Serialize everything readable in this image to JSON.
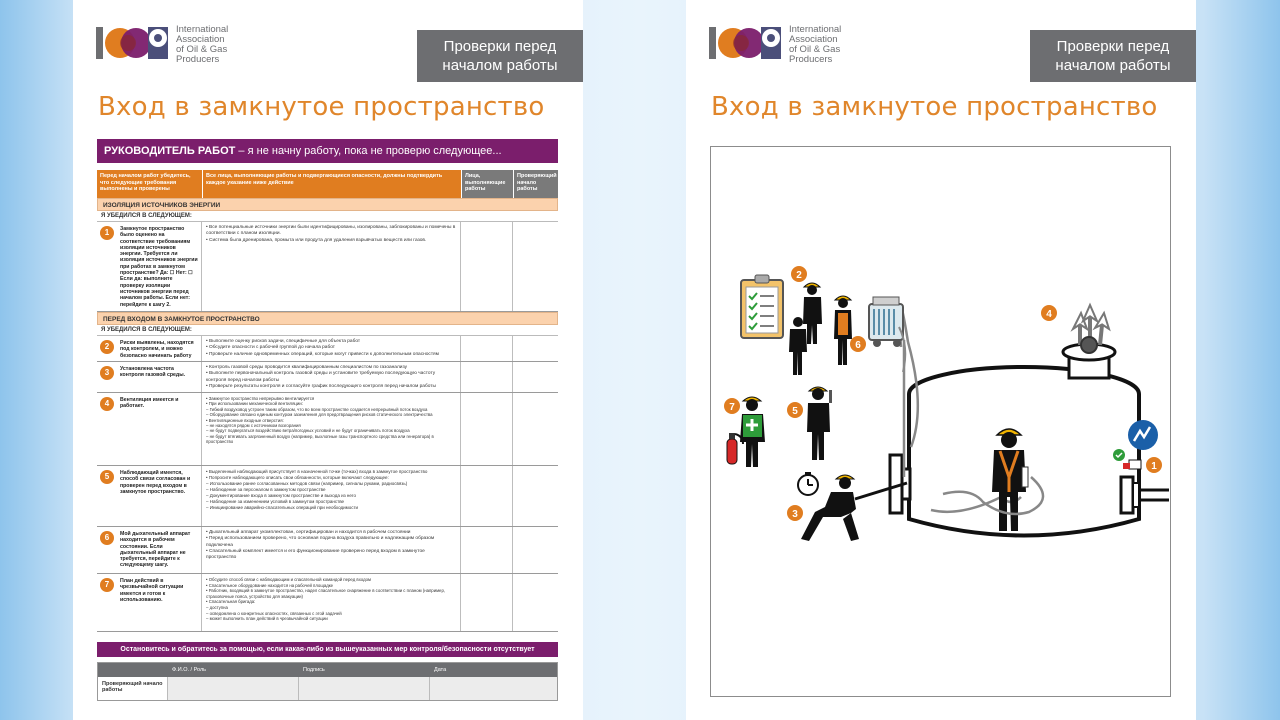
{
  "slide": {
    "background": "#c8e2f6",
    "accent_orange": "#e07d20",
    "accent_purple": "#7b1e6c",
    "badge_gray": "#6d6e71"
  },
  "logo": {
    "mark": "IOGP",
    "text_lines": [
      "International",
      "Association",
      "of Oil & Gas",
      "Producers"
    ]
  },
  "badge": {
    "line1": "Проверки перед",
    "line2": "началом работы"
  },
  "title": "Вход в замкнутое пространство",
  "supervisor": {
    "bold": "РУКОВОДИТЕЛЬ РАБОТ",
    "rest": " – я не начну работу, пока не проверю следующее..."
  },
  "table": {
    "headers": [
      "Перед началом работ убедитесь, что следующие требования выполнены и проверены",
      "Все лица, выполняющие работы и подвергающиеся опасности, должны подтвердить каждое указание ниже действие",
      "Лица, выполняющие работы",
      "Проверяющий начало работы"
    ],
    "section1": "ИЗОЛЯЦИЯ ИСТОЧНИКОВ ЭНЕРГИИ",
    "section2": "ПЕРЕД ВХОДОМ В ЗАМКНУТОЕ ПРОСТРАНСТВО",
    "confirm": "Я УБЕДИЛСЯ В СЛЕДУЮЩЕМ:",
    "rows": [
      {
        "num": "1",
        "condition": "Замкнутое пространство было оценено на соответствие требованиям изоляции источников энергии. Требуется ли изоляция источников энергии при работах в замкнутом пространстве? Да: ☐  Нет: ☐ Если да: выполните проверку изоляции источников энергии перед началом работы. Если нет: перейдите к шагу 2.",
        "requirements": "• Все потенциальные источники энергии были идентифицированы, изолированы, заблокированы и помечены в соответствии с планом изоляции.\n• Система была дренирована, промыта или продута для удаления взрывчатых веществ или газов."
      },
      {
        "num": "2",
        "condition": "Риски выявлены, находятся под контролем, и можно безопасно начинать работу",
        "requirements": "• Выполните оценку рисков задачи, специфичные для объекта работ\n• Обсудите опасности с рабочей группой до начала работ\n• Проверьте наличие одновременных операций, которые могут привести к дополнительным опасностям"
      },
      {
        "num": "3",
        "condition": "Установлена частота контроля газовой среды.",
        "requirements": "• Контроль газовой среды проводится квалифицированным специалистом по газоанализу\n• Выполните первоначальный контроль газовой среды и установите требуемую последующую частоту контроля перед началом работы\n• Проверьте результаты контроля и согласуйте график последующего контроля перед началом работы"
      },
      {
        "num": "4",
        "condition": "Вентиляция имеется и работает.",
        "requirements": "• Замкнутое пространство непрерывно вентилируется\n• При использовании механической вентиляции:\n  – Гибкий воздуховод устроен таким образом, что во всем пространстве создается непрерывный поток воздуха\n  – Оборудование связано единым контуром заземления для предотвращения рисков статического электричества\n• Вентиляционные входные отверстия:\n  – не находятся рядом с источником возгорания\n  – не будут подвергаться воздействию ветра/погодных условий и не будут ограничивать поток воздуха\n  – не будут втягивать загрязненный воздух (например, выхлопные газы транспортного средства или генератора) в пространство"
      },
      {
        "num": "5",
        "condition": "Наблюдающий имеется, способ связи согласован и проверен перед входом в замкнутое пространство.",
        "requirements": "• Выделенный наблюдающий присутствует в назначенной точке (точках) входа в замкнутое пространство\n• Попросите наблюдающего описать свои обязанности, которые включают следующее:\n  – Использование ранее согласованных методов связи (например, сигналы руками, радиосвязь)\n  – Наблюдение за персоналом в замкнутом пространстве\n  – Документирование входа в замкнутом пространстве и выхода из него\n  – Наблюдение за изменением условий в замкнутом пространстве\n  – Инициирование аварийно-спасательных операций при необходимости"
      },
      {
        "num": "6",
        "condition": "Мой дыхательный аппарат находится в рабочем состоянии. Если дыхательный аппарат не требуется, перейдите к следующему шагу.",
        "requirements": "• Дыхательный аппарат укомплектован, сертифицирован и находится в рабочем состоянии\n• Перед использованием проверено, что основная подача воздуха правильно и надлежащим образом подключена\n• Спасательный комплект имеется и его функционирование проверено перед входом в замкнутое пространство"
      },
      {
        "num": "7",
        "condition": "План действий в чрезвычайной ситуации имеется и готов к использованию.",
        "requirements": "• Обсудите способ связи с наблюдающим и спасательной командой перед входом\n• Спасательное оборудование находится на рабочей площадке\n• Работник, входящий в замкнутое пространство, надел спасательное снаряжение в соответствии с планом (например, страховочные пояса, устройство для эвакуации)\n• Спасательная бригада:\n  – доступна\n  – осведомлена о конкретных опасностях, связанных с этой задачей\n  – может выполнить план действий в чрезвычайной ситуации"
      }
    ]
  },
  "stop_message": "Остановитесь и обратитесь за помощью, если какая-либо из вышеуказанных мер контроля/безопасности отсутствует",
  "signature": {
    "columns": [
      "",
      "Ф.И.О. / Роль",
      "Подпись",
      "Дата"
    ],
    "row_label": "Проверяющий начало работы"
  },
  "illustration": {
    "markers": [
      "1",
      "2",
      "3",
      "4",
      "5",
      "6",
      "7"
    ],
    "icons": [
      "gas-isolation-sign-icon",
      "clipboard-checklist-icon",
      "stopwatch-icon",
      "fire-extinguisher-icon",
      "gas-detector-icon",
      "ventilation-fan-icon"
    ]
  }
}
